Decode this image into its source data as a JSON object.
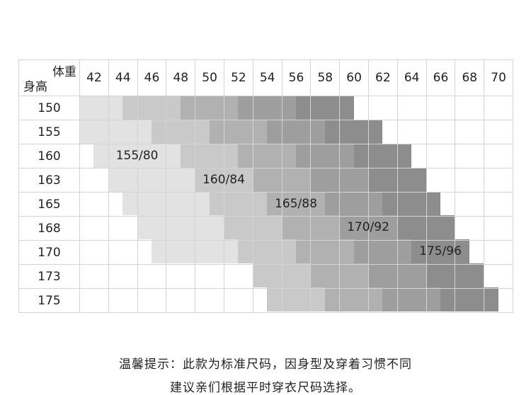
{
  "table": {
    "corner_weight_label": "体重",
    "corner_height_label": "身高",
    "weights": [
      "42",
      "44",
      "46",
      "48",
      "50",
      "52",
      "54",
      "56",
      "58",
      "60",
      "62",
      "64",
      "66",
      "68",
      "70"
    ],
    "heights": [
      "150",
      "155",
      "160",
      "163",
      "165",
      "168",
      "170",
      "173",
      "175"
    ],
    "shade_colors": [
      "#e2e2e2",
      "#c9c9c9",
      "#b1b1b1",
      "#9e9e9e",
      "#8d8d8d"
    ],
    "bands_kg": [
      [
        41,
        44,
        48,
        52,
        56,
        60
      ],
      [
        41,
        46,
        50,
        54,
        58,
        62
      ],
      [
        42,
        48,
        52,
        56,
        60,
        64
      ],
      [
        43,
        49,
        53,
        57,
        61,
        65
      ],
      [
        44,
        50,
        54,
        58,
        62,
        66
      ],
      [
        45,
        51,
        55,
        59,
        63,
        67
      ],
      [
        46,
        52,
        56,
        60,
        64,
        68
      ],
      [
        53,
        53,
        57,
        61,
        65,
        69
      ],
      [
        54,
        54,
        58,
        62,
        66,
        70
      ]
    ],
    "size_labels": [
      "155/80",
      "160/84",
      "165/88",
      "170/92",
      "175/96"
    ]
  },
  "note": {
    "line1": "温馨提示：此款为标准尺码，因身型及穿着习惯不同",
    "line2": "建议亲们根据平时穿衣尺码选择。"
  }
}
